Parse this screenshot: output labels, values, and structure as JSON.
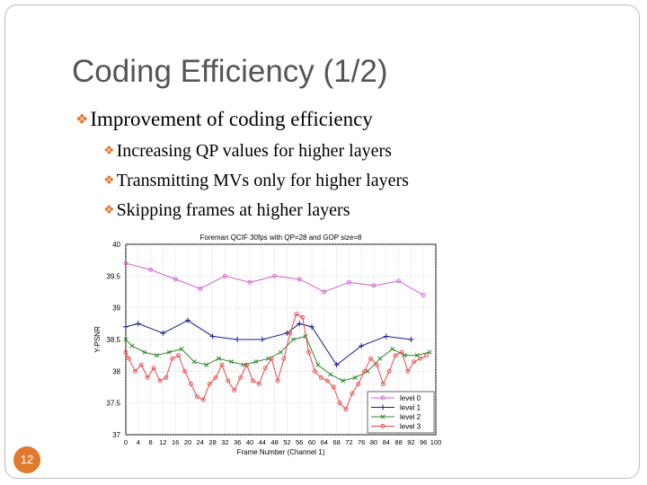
{
  "slide": {
    "title": "Coding Efficiency (1/2)",
    "bullets": [
      "Improvement of coding efficiency",
      "Increasing QP values for higher layers",
      "Transmitting MVs only for higher layers",
      "Skipping frames at higher layers"
    ],
    "page_number": "12",
    "accent_color": "#e07a2f"
  },
  "chart_data": {
    "type": "line",
    "title": "Foreman QCIF 30fps with QP=28 and GOP size=8",
    "xlabel": "Frame Number (Channel 1)",
    "ylabel": "Y-PSNR",
    "xlim": [
      0,
      100
    ],
    "ylim": [
      37,
      40
    ],
    "xticks": [
      0,
      4,
      8,
      12,
      16,
      20,
      24,
      28,
      32,
      36,
      40,
      44,
      48,
      52,
      56,
      60,
      64,
      68,
      72,
      76,
      80,
      84,
      88,
      92,
      96,
      100
    ],
    "yticks": [
      37,
      37.5,
      38,
      38.5,
      39,
      39.5,
      40
    ],
    "ytick_labels": [
      "37",
      "37.5",
      "38",
      "38.5",
      "39",
      "39.5",
      "40"
    ],
    "grid": true,
    "legend": "bottom-right",
    "series": [
      {
        "name": "level 0",
        "color": "#d060d0",
        "marker": "o",
        "x": [
          0,
          8,
          16,
          24,
          32,
          40,
          48,
          56,
          64,
          72,
          80,
          88,
          96
        ],
        "y": [
          39.7,
          39.6,
          39.45,
          39.3,
          39.5,
          39.4,
          39.5,
          39.45,
          39.25,
          39.4,
          39.35,
          39.42,
          39.2
        ]
      },
      {
        "name": "level 1",
        "color": "#1a1a8c",
        "marker": "+",
        "x": [
          0,
          4,
          12,
          20,
          28,
          36,
          44,
          52,
          56,
          60,
          68,
          76,
          84,
          92
        ],
        "y": [
          38.7,
          38.75,
          38.6,
          38.8,
          38.55,
          38.5,
          38.5,
          38.6,
          38.75,
          38.7,
          38.1,
          38.4,
          38.55,
          38.5
        ]
      },
      {
        "name": "level 2",
        "color": "#2e8b2e",
        "marker": "x",
        "x": [
          0,
          2,
          6,
          10,
          14,
          18,
          22,
          26,
          30,
          34,
          38,
          42,
          46,
          50,
          54,
          58,
          62,
          66,
          70,
          74,
          78,
          82,
          86,
          90,
          94,
          98
        ],
        "y": [
          38.5,
          38.4,
          38.3,
          38.25,
          38.3,
          38.35,
          38.15,
          38.1,
          38.2,
          38.15,
          38.1,
          38.15,
          38.2,
          38.3,
          38.5,
          38.55,
          38.1,
          37.95,
          37.85,
          37.9,
          38.0,
          38.2,
          38.35,
          38.25,
          38.25,
          38.3
        ]
      },
      {
        "name": "level 3",
        "color": "#e84848",
        "marker": "o",
        "x": [
          0,
          1,
          3,
          5,
          7,
          9,
          11,
          13,
          15,
          17,
          19,
          21,
          23,
          25,
          27,
          29,
          31,
          33,
          35,
          37,
          39,
          41,
          43,
          45,
          47,
          49,
          51,
          53,
          55,
          57,
          59,
          61,
          63,
          65,
          67,
          69,
          71,
          73,
          75,
          77,
          79,
          81,
          83,
          85,
          87,
          89,
          91,
          93,
          95,
          97
        ],
        "y": [
          38.3,
          38.2,
          38.0,
          38.1,
          37.9,
          38.05,
          37.85,
          37.9,
          38.2,
          38.25,
          38.0,
          37.8,
          37.6,
          37.55,
          37.8,
          37.9,
          38.1,
          37.85,
          37.7,
          37.9,
          38.1,
          37.85,
          37.8,
          38.05,
          38.2,
          37.85,
          38.2,
          38.6,
          38.9,
          38.85,
          38.3,
          38.0,
          37.9,
          37.85,
          37.75,
          37.5,
          37.4,
          37.65,
          37.8,
          38.0,
          38.2,
          38.1,
          37.8,
          38.0,
          38.25,
          38.3,
          38.0,
          38.15,
          38.2,
          38.25
        ]
      }
    ]
  }
}
